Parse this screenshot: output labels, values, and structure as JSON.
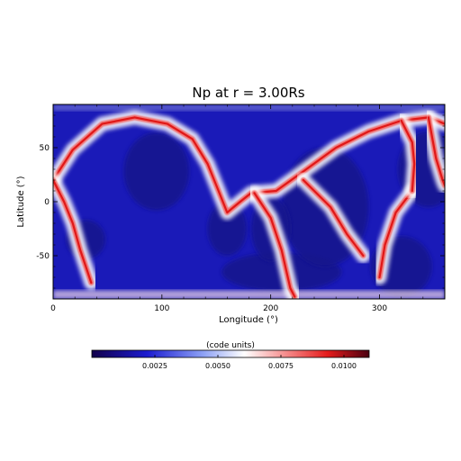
{
  "chart_data": {
    "type": "heatmap",
    "title": "Np at r = 3.00Rs",
    "xlabel": "Longitude (°)",
    "ylabel": "Latitude (°)",
    "xlim": [
      0,
      360
    ],
    "ylim": [
      -90,
      90
    ],
    "x_ticks": [
      0,
      100,
      200,
      300
    ],
    "y_ticks": [
      -50,
      0,
      50
    ],
    "colorbar": {
      "title": "(code units)",
      "range": [
        0.0,
        0.011
      ],
      "ticks": [
        0.0025,
        0.005,
        0.0075,
        0.01
      ],
      "tick_labels": [
        "0.0025",
        "0.0050",
        "0.0075",
        "0.0100"
      ],
      "colormap": [
        "#12004a",
        "#1c1cd0",
        "#8ca0f5",
        "#ffffff",
        "#f58c8c",
        "#e41c1c",
        "#4a0010"
      ]
    },
    "description_values": {
      "background": 0.001,
      "current_sheet_peak": 0.0105
    },
    "features": [
      {
        "kind": "high-density lane",
        "points": [
          [
            0,
            20
          ],
          [
            18,
            48
          ],
          [
            45,
            72
          ],
          [
            75,
            78
          ],
          [
            105,
            72
          ],
          [
            128,
            58
          ],
          [
            142,
            35
          ],
          [
            152,
            10
          ],
          [
            160,
            -10
          ],
          [
            172,
            0
          ],
          [
            182,
            8
          ],
          [
            205,
            10
          ],
          [
            230,
            28
          ],
          [
            260,
            50
          ],
          [
            290,
            65
          ],
          [
            320,
            75
          ],
          [
            345,
            78
          ],
          [
            360,
            72
          ]
        ]
      },
      {
        "kind": "high-density lane",
        "points": [
          [
            0,
            20
          ],
          [
            10,
            0
          ],
          [
            18,
            -20
          ],
          [
            25,
            -45
          ],
          [
            30,
            -60
          ],
          [
            35,
            -75
          ]
        ]
      },
      {
        "kind": "high-density lane",
        "points": [
          [
            345,
            78
          ],
          [
            352,
            40
          ],
          [
            358,
            20
          ],
          [
            360,
            15
          ]
        ]
      },
      {
        "kind": "high-density lane",
        "points": [
          [
            185,
            8
          ],
          [
            200,
            -15
          ],
          [
            210,
            -45
          ],
          [
            218,
            -80
          ],
          [
            222,
            -88
          ]
        ]
      },
      {
        "kind": "high-density lane",
        "points": [
          [
            230,
            20
          ],
          [
            255,
            -5
          ],
          [
            270,
            -30
          ],
          [
            285,
            -50
          ]
        ]
      },
      {
        "kind": "high-density lane",
        "points": [
          [
            330,
            10
          ],
          [
            315,
            -10
          ],
          [
            305,
            -40
          ],
          [
            300,
            -70
          ]
        ]
      },
      {
        "kind": "high-density lane",
        "points": [
          [
            320,
            75
          ],
          [
            330,
            55
          ],
          [
            332,
            35
          ],
          [
            330,
            10
          ]
        ]
      }
    ]
  }
}
